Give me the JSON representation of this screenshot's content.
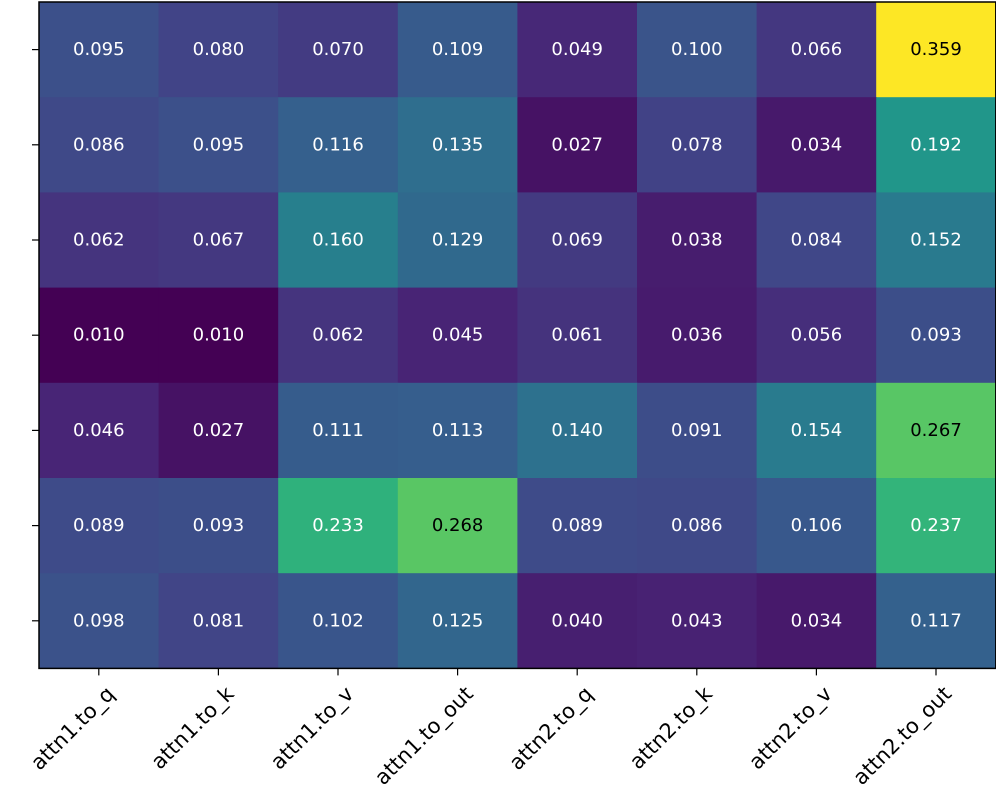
{
  "chart_data": {
    "type": "heatmap",
    "title": "",
    "xlabel": "",
    "ylabel": "",
    "x_categories": [
      "attn1.to_q",
      "attn1.to_k",
      "attn1.to_v",
      "attn1.to_out",
      "attn2.to_q",
      "attn2.to_k",
      "attn2.to_v",
      "attn2.to_out"
    ],
    "rows": 7,
    "y_tick_labels_shown": false,
    "colormap": "viridis",
    "value_range": [
      0.01,
      0.359
    ],
    "values": [
      [
        0.095,
        0.08,
        0.07,
        0.109,
        0.049,
        0.1,
        0.066,
        0.359
      ],
      [
        0.086,
        0.095,
        0.116,
        0.135,
        0.027,
        0.078,
        0.034,
        0.192
      ],
      [
        0.062,
        0.067,
        0.16,
        0.129,
        0.069,
        0.038,
        0.084,
        0.152
      ],
      [
        0.01,
        0.01,
        0.062,
        0.045,
        0.061,
        0.036,
        0.056,
        0.093
      ],
      [
        0.046,
        0.027,
        0.111,
        0.113,
        0.14,
        0.091,
        0.154,
        0.267
      ],
      [
        0.089,
        0.093,
        0.233,
        0.268,
        0.089,
        0.086,
        0.106,
        0.237
      ],
      [
        0.098,
        0.081,
        0.102,
        0.125,
        0.04,
        0.043,
        0.034,
        0.117
      ]
    ],
    "grid": false,
    "colorbar": false,
    "label_color_dark": "#000000",
    "label_color_light": "#ffffff"
  }
}
